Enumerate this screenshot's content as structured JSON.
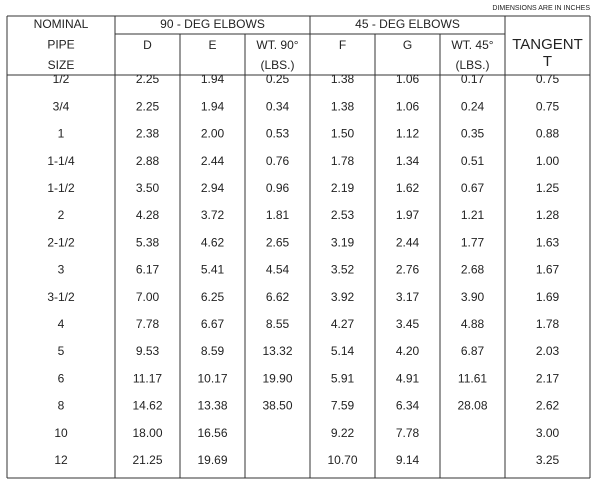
{
  "header": {
    "note": "DIMENSIONS ARE IN INCHES",
    "nominal": [
      "NOMINAL",
      "PIPE",
      "SIZE"
    ],
    "groups": [
      "90 - DEG ELBOWS",
      "45 - DEG ELBOWS"
    ],
    "columns": [
      [
        "D"
      ],
      [
        "E"
      ],
      [
        "WT. 90°",
        "(LBS.)"
      ],
      [
        "F"
      ],
      [
        "G"
      ],
      [
        "WT. 45°",
        "(LBS.)"
      ],
      [
        "TANGENT",
        "T"
      ]
    ]
  },
  "table": {
    "rows": [
      [
        "1/2",
        "2.25",
        "1.94",
        "0.25",
        "1.38",
        "1.06",
        "0.17",
        "0.75"
      ],
      [
        "3/4",
        "2.25",
        "1.94",
        "0.34",
        "1.38",
        "1.06",
        "0.24",
        "0.75"
      ],
      [
        "1",
        "2.38",
        "2.00",
        "0.53",
        "1.50",
        "1.12",
        "0.35",
        "0.88"
      ],
      [
        "1-1/4",
        "2.88",
        "2.44",
        "0.76",
        "1.78",
        "1.34",
        "0.51",
        "1.00"
      ],
      [
        "1-1/2",
        "3.50",
        "2.94",
        "0.96",
        "2.19",
        "1.62",
        "0.67",
        "1.25"
      ],
      [
        "2",
        "4.28",
        "3.72",
        "1.81",
        "2.53",
        "1.97",
        "1.21",
        "1.28"
      ],
      [
        "2-1/2",
        "5.38",
        "4.62",
        "2.65",
        "3.19",
        "2.44",
        "1.77",
        "1.63"
      ],
      [
        "3",
        "6.17",
        "5.41",
        "4.54",
        "3.52",
        "2.76",
        "2.68",
        "1.67"
      ],
      [
        "3-1/2",
        "7.00",
        "6.25",
        "6.62",
        "3.92",
        "3.17",
        "3.90",
        "1.69"
      ],
      [
        "4",
        "7.78",
        "6.67",
        "8.55",
        "4.27",
        "3.45",
        "4.88",
        "1.78"
      ],
      [
        "5",
        "9.53",
        "8.59",
        "13.32",
        "5.14",
        "4.20",
        "6.87",
        "2.03"
      ],
      [
        "6",
        "11.17",
        "10.17",
        "19.90",
        "5.91",
        "4.91",
        "11.61",
        "2.17"
      ],
      [
        "8",
        "14.62",
        "13.38",
        "38.50",
        "7.59",
        "6.34",
        "28.08",
        "2.62"
      ],
      [
        "10",
        "18.00",
        "16.56",
        null,
        "9.22",
        "7.78",
        null,
        "3.00"
      ],
      [
        "12",
        "21.25",
        "19.69",
        null,
        "10.70",
        "9.14",
        null,
        "3.25"
      ]
    ]
  }
}
